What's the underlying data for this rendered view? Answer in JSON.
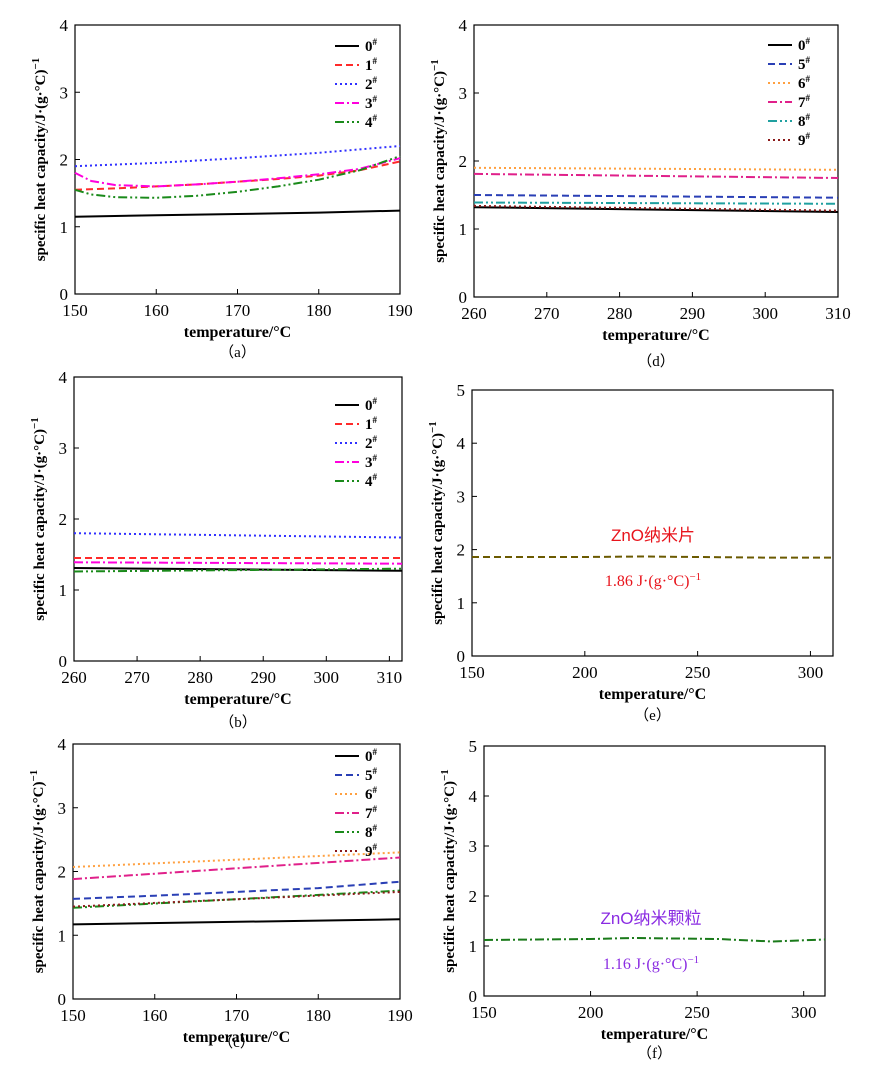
{
  "chart_data": [
    {
      "id": "a",
      "type": "line",
      "caption": "（a）",
      "xlabel": "temperature/°C",
      "ylabel": "specific heat capacity/J·(g·°C)",
      "ylabel_sup": "−1",
      "xlim": [
        150,
        190
      ],
      "ylim": [
        0,
        4
      ],
      "xticks": [
        "150",
        "160",
        "170",
        "180",
        "190"
      ],
      "yticks": [
        "0",
        "1",
        "2",
        "3",
        "4"
      ],
      "legend_position": "top-right",
      "series": [
        {
          "name": "0",
          "sup": "#",
          "color": "#000000",
          "dash": "solid",
          "x": [
            150,
            160,
            170,
            180,
            190
          ],
          "y": [
            1.15,
            1.17,
            1.19,
            1.21,
            1.24
          ]
        },
        {
          "name": "1",
          "sup": "#",
          "color": "#ff2a2a",
          "dash": "dash",
          "x": [
            150,
            155,
            160,
            165,
            170,
            175,
            180,
            185,
            190
          ],
          "y": [
            1.55,
            1.57,
            1.6,
            1.63,
            1.67,
            1.71,
            1.76,
            1.84,
            1.97
          ]
        },
        {
          "name": "2",
          "sup": "#",
          "color": "#3030ff",
          "dash": "dot",
          "x": [
            150,
            160,
            170,
            180,
            190
          ],
          "y": [
            1.9,
            1.95,
            2.02,
            2.1,
            2.2
          ]
        },
        {
          "name": "3",
          "sup": "#",
          "color": "#ff00dd",
          "dash": "dashdot",
          "x": [
            150,
            152,
            155,
            160,
            165,
            170,
            175,
            180,
            185,
            190
          ],
          "y": [
            1.8,
            1.68,
            1.62,
            1.6,
            1.63,
            1.67,
            1.72,
            1.78,
            1.86,
            2.02
          ]
        },
        {
          "name": "4",
          "sup": "#",
          "color": "#1a8a1a",
          "dash": "dashdotdot",
          "x": [
            150,
            152,
            155,
            160,
            165,
            170,
            175,
            180,
            185,
            190
          ],
          "y": [
            1.55,
            1.48,
            1.44,
            1.43,
            1.46,
            1.52,
            1.6,
            1.7,
            1.84,
            2.05
          ]
        }
      ]
    },
    {
      "id": "d",
      "type": "line",
      "caption": "（d）",
      "xlabel": "temperature/°C",
      "ylabel": "specific heat capacity/J·(g·°C)",
      "ylabel_sup": "−1",
      "xlim": [
        260,
        310
      ],
      "ylim": [
        0,
        4
      ],
      "xticks": [
        "260",
        "270",
        "280",
        "290",
        "300",
        "310"
      ],
      "yticks": [
        "0",
        "1",
        "2",
        "3",
        "4"
      ],
      "legend_position": "top-right",
      "series": [
        {
          "name": "0",
          "sup": "#",
          "color": "#000000",
          "dash": "solid",
          "x": [
            260,
            310
          ],
          "y": [
            1.32,
            1.25
          ]
        },
        {
          "name": "5",
          "sup": "#",
          "color": "#2a3fb5",
          "dash": "dash",
          "x": [
            260,
            310
          ],
          "y": [
            1.5,
            1.46
          ]
        },
        {
          "name": "6",
          "sup": "#",
          "color": "#ffa040",
          "dash": "dot",
          "x": [
            260,
            310
          ],
          "y": [
            1.9,
            1.87
          ]
        },
        {
          "name": "7",
          "sup": "#",
          "color": "#e0208a",
          "dash": "dashdot",
          "x": [
            260,
            310
          ],
          "y": [
            1.81,
            1.75
          ]
        },
        {
          "name": "8",
          "sup": "#",
          "color": "#20a0a0",
          "dash": "dashdotdot",
          "x": [
            260,
            310
          ],
          "y": [
            1.39,
            1.37
          ]
        },
        {
          "name": "9",
          "sup": "#",
          "color": "#8b1a1a",
          "dash": "dot",
          "x": [
            260,
            310
          ],
          "y": [
            1.34,
            1.27
          ]
        }
      ]
    },
    {
      "id": "b",
      "type": "line",
      "caption": "（b）",
      "xlabel": "temperature/°C",
      "ylabel": "specific heat capacity/J·(g·°C)",
      "ylabel_sup": "−1",
      "xlim": [
        260,
        312
      ],
      "ylim": [
        0,
        4
      ],
      "xticks": [
        "260",
        "270",
        "280",
        "290",
        "300",
        "310"
      ],
      "yticks": [
        "0",
        "1",
        "2",
        "3",
        "4"
      ],
      "legend_position": "top-right",
      "series": [
        {
          "name": "0",
          "sup": "#",
          "color": "#000000",
          "dash": "solid",
          "x": [
            260,
            312
          ],
          "y": [
            1.31,
            1.27
          ]
        },
        {
          "name": "1",
          "sup": "#",
          "color": "#ff2a2a",
          "dash": "dash",
          "x": [
            260,
            312
          ],
          "y": [
            1.45,
            1.45
          ]
        },
        {
          "name": "2",
          "sup": "#",
          "color": "#3030ff",
          "dash": "dot",
          "x": [
            260,
            312
          ],
          "y": [
            1.8,
            1.74
          ]
        },
        {
          "name": "3",
          "sup": "#",
          "color": "#ff00dd",
          "dash": "dashdot",
          "x": [
            260,
            312
          ],
          "y": [
            1.39,
            1.37
          ]
        },
        {
          "name": "4",
          "sup": "#",
          "color": "#1a8a1a",
          "dash": "dashdotdot",
          "x": [
            260,
            312
          ],
          "y": [
            1.26,
            1.3
          ]
        }
      ]
    },
    {
      "id": "e",
      "type": "line",
      "caption": "（e）",
      "xlabel": "temperature/°C",
      "ylabel": "specific heat capacity/J·(g·°C)",
      "ylabel_sup": "−1",
      "xlim": [
        150,
        310
      ],
      "ylim": [
        0,
        5
      ],
      "xticks": [
        "150",
        "200",
        "250",
        "300"
      ],
      "yticks": [
        "0",
        "1",
        "2",
        "3",
        "4",
        "5"
      ],
      "annotation_title": "ZnO纳米片",
      "annotation_value": "1.86 J·(g·°C)",
      "annotation_sup": "−1",
      "annotation_color": "#e8141c",
      "series": [
        {
          "name": "ZnO纳米片",
          "color": "#6b5a00",
          "dash": "dash",
          "x": [
            150,
            200,
            225,
            250,
            280,
            310
          ],
          "y": [
            1.86,
            1.86,
            1.87,
            1.86,
            1.85,
            1.85
          ]
        }
      ]
    },
    {
      "id": "c",
      "type": "line",
      "caption": "（c）",
      "xlabel": "temperature/°C",
      "ylabel": "specific heat capacity/J·(g·°C)",
      "ylabel_sup": "−1",
      "xlim": [
        150,
        190
      ],
      "ylim": [
        0,
        4
      ],
      "xticks": [
        "150",
        "160",
        "170",
        "180",
        "190"
      ],
      "yticks": [
        "0",
        "1",
        "2",
        "3",
        "4"
      ],
      "legend_position": "top-right",
      "series": [
        {
          "name": "0",
          "sup": "#",
          "color": "#000000",
          "dash": "solid",
          "x": [
            150,
            190
          ],
          "y": [
            1.17,
            1.25
          ]
        },
        {
          "name": "5",
          "sup": "#",
          "color": "#2a3fb5",
          "dash": "dash",
          "x": [
            150,
            160,
            170,
            180,
            190
          ],
          "y": [
            1.57,
            1.62,
            1.68,
            1.74,
            1.84
          ]
        },
        {
          "name": "6",
          "sup": "#",
          "color": "#ffa040",
          "dash": "dot",
          "x": [
            150,
            190
          ],
          "y": [
            2.07,
            2.3
          ]
        },
        {
          "name": "7",
          "sup": "#",
          "color": "#e0208a",
          "dash": "dashdot",
          "x": [
            150,
            190
          ],
          "y": [
            1.88,
            2.22
          ]
        },
        {
          "name": "8",
          "sup": "#",
          "color": "#1a8a1a",
          "dash": "dashdotdot",
          "x": [
            150,
            190
          ],
          "y": [
            1.43,
            1.7
          ]
        },
        {
          "name": "9",
          "sup": "#",
          "color": "#8b1a1a",
          "dash": "dot",
          "x": [
            150,
            190
          ],
          "y": [
            1.45,
            1.68
          ]
        }
      ]
    },
    {
      "id": "f",
      "type": "line",
      "caption": "（f）",
      "xlabel": "temperature/°C",
      "ylabel": "specific heat capacity/J·(g·°C)",
      "ylabel_sup": "−1",
      "xlim": [
        150,
        310
      ],
      "ylim": [
        0,
        5
      ],
      "xticks": [
        "150",
        "200",
        "250",
        "300"
      ],
      "yticks": [
        "0",
        "1",
        "2",
        "3",
        "4",
        "5"
      ],
      "annotation_title": "ZnO纳米颗粒",
      "annotation_value": "1.16 J·(g·°C)",
      "annotation_sup": "−1",
      "annotation_color": "#8a2be2",
      "series": [
        {
          "name": "ZnO纳米颗粒",
          "color": "#1a7a1a",
          "dash": "dashdot",
          "x": [
            150,
            175,
            200,
            220,
            240,
            260,
            285,
            310
          ],
          "y": [
            1.12,
            1.13,
            1.14,
            1.16,
            1.15,
            1.14,
            1.09,
            1.13
          ]
        }
      ]
    }
  ]
}
